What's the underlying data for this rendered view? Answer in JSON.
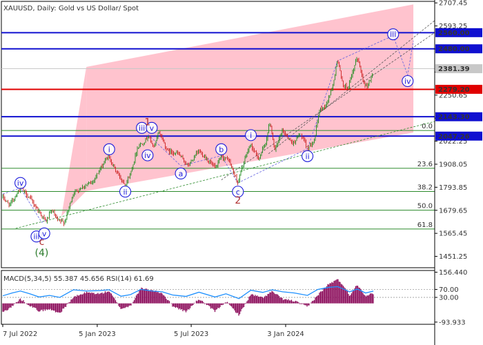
{
  "header": {
    "symbol_line": "XAUUSD, Daily:  Gold vs US Dollar/ Spot"
  },
  "colors": {
    "channel_fill": "#ffc0cb",
    "level_blue": "#1010d0",
    "level_red": "#e00000",
    "fib_green": "#2a8a2a",
    "candle_up": "#1a8a1a",
    "candle_down": "#cc2020",
    "wave_label": "#1a1adb",
    "wave_red": "#b03030",
    "wave_green": "#2a7a2a",
    "macd_hist": "#8b0a5a",
    "rsi_line": "#1e90ff"
  },
  "chart_data": [
    {
      "type": "candlestick",
      "title": "XAUUSD, Daily:  Gold vs US Dollar/ Spot",
      "x_ticks": [
        "7 Jul 2022",
        "5 Jan 2023",
        "5 Jul 2023",
        "3 Jan 2024"
      ],
      "y_ticks": [
        2707.45,
        2593.25,
        2479.05,
        2364.85,
        2250.65,
        2136.45,
        2022.25,
        1908.05,
        1793.85,
        1679.65,
        1565.45,
        1451.25
      ],
      "y_tick_labels": [
        "2707.45",
        "2593.25",
        "",
        "",
        "2250.65",
        "",
        "2022.25",
        "1908.05",
        "1793.85",
        "1679.65",
        "1565.45",
        "1451.25"
      ],
      "ylim": [
        1395,
        2715
      ],
      "current_price": {
        "value": 2381.39,
        "label": "2381.39"
      },
      "price_path": [
        [
          "2022-07-07",
          1745
        ],
        [
          "2022-07-20",
          1705
        ],
        [
          "2022-08-10",
          1790
        ],
        [
          "2022-08-25",
          1750
        ],
        [
          "2022-09-05",
          1710
        ],
        [
          "2022-09-28",
          1625
        ],
        [
          "2022-10-10",
          1680
        ],
        [
          "2022-10-20",
          1628
        ],
        [
          "2022-11-03",
          1620
        ],
        [
          "2022-11-20",
          1765
        ],
        [
          "2022-12-10",
          1800
        ],
        [
          "2022-12-25",
          1815
        ],
        [
          "2023-01-10",
          1880
        ],
        [
          "2023-01-26",
          1950
        ],
        [
          "2023-02-10",
          1875
        ],
        [
          "2023-02-28",
          1808
        ],
        [
          "2023-03-10",
          1860
        ],
        [
          "2023-03-24",
          1995
        ],
        [
          "2023-04-05",
          2018
        ],
        [
          "2023-04-13",
          2048
        ],
        [
          "2023-04-25",
          1990
        ],
        [
          "2023-05-04",
          2072
        ],
        [
          "2023-05-20",
          1975
        ],
        [
          "2023-06-10",
          1960
        ],
        [
          "2023-06-29",
          1900
        ],
        [
          "2023-07-20",
          1975
        ],
        [
          "2023-08-10",
          1918
        ],
        [
          "2023-08-21",
          1885
        ],
        [
          "2023-09-01",
          1945
        ],
        [
          "2023-09-15",
          1930
        ],
        [
          "2023-10-03",
          1815
        ],
        [
          "2023-10-15",
          1925
        ],
        [
          "2023-10-27",
          2005
        ],
        [
          "2023-11-12",
          1935
        ],
        [
          "2023-11-25",
          2010
        ],
        [
          "2023-12-04",
          2120
        ],
        [
          "2023-12-13",
          1975
        ],
        [
          "2023-12-28",
          2075
        ],
        [
          "2024-01-17",
          2010
        ],
        [
          "2024-01-31",
          2060
        ],
        [
          "2024-02-14",
          1985
        ],
        [
          "2024-02-28",
          2035
        ],
        [
          "2024-03-08",
          2175
        ],
        [
          "2024-03-21",
          2200
        ],
        [
          "2024-04-03",
          2300
        ],
        [
          "2024-04-12",
          2430
        ],
        [
          "2024-04-22",
          2300
        ],
        [
          "2024-05-03",
          2290
        ],
        [
          "2024-05-20",
          2440
        ],
        [
          "2024-05-31",
          2325
        ],
        [
          "2024-06-07",
          2290
        ],
        [
          "2024-06-20",
          2360
        ]
      ],
      "levels": [
        {
          "value": 2560.0,
          "label": "2560.00",
          "color": "blue"
        },
        {
          "value": 2480.0,
          "label": "2480.00",
          "color": "blue"
        },
        {
          "value": 2279.2,
          "label": "2279.20",
          "color": "red"
        },
        {
          "value": 2143.3,
          "label": "2143.30",
          "color": "blue"
        },
        {
          "value": 2047.26,
          "label": "2047.26",
          "color": "blue"
        }
      ],
      "fib_levels": [
        {
          "value": 2075,
          "label": "0.0"
        },
        {
          "value": 1888,
          "label": "23.6"
        },
        {
          "value": 1773,
          "label": "38.2"
        },
        {
          "value": 1680,
          "label": "50.0"
        },
        {
          "value": 1587,
          "label": "61.8"
        }
      ],
      "channel": {
        "upper": [
          [
            "2022-12-15",
            2390
          ],
          [
            "2024-09-05",
            2700
          ]
        ],
        "lower": [
          [
            "2022-12-15",
            1775
          ],
          [
            "2024-09-05",
            2065
          ]
        ]
      },
      "wave_labels": [
        {
          "text": "iv",
          "x": "2022-08-10",
          "y": 1815,
          "style": "circle"
        },
        {
          "text": "iii",
          "x": "2022-09-10",
          "y": 1550,
          "style": "circle"
        },
        {
          "text": "v",
          "x": "2022-09-25",
          "y": 1565,
          "style": "circle"
        },
        {
          "text": "c",
          "x": "2022-09-20",
          "y": 1525,
          "style": "red"
        },
        {
          "text": "(4)",
          "x": "2022-09-20",
          "y": 1470,
          "style": "green"
        },
        {
          "text": "i",
          "x": "2023-01-28",
          "y": 1982,
          "style": "circle"
        },
        {
          "text": "ii",
          "x": "2023-02-28",
          "y": 1772,
          "style": "circle"
        },
        {
          "text": "iii",
          "x": "2023-04-01",
          "y": 2088,
          "style": "circle"
        },
        {
          "text": "v",
          "x": "2023-04-20",
          "y": 2088,
          "style": "circle"
        },
        {
          "text": "1",
          "x": "2023-04-12",
          "y": 2118,
          "style": "red"
        },
        {
          "text": "iv",
          "x": "2023-04-12",
          "y": 1952,
          "style": "circle"
        },
        {
          "text": "a",
          "x": "2023-06-15",
          "y": 1862,
          "style": "circle"
        },
        {
          "text": "b",
          "x": "2023-09-01",
          "y": 1982,
          "style": "circle"
        },
        {
          "text": "c",
          "x": "2023-10-03",
          "y": 1772,
          "style": "circle"
        },
        {
          "text": "2",
          "x": "2023-10-03",
          "y": 1730,
          "style": "red"
        },
        {
          "text": "i",
          "x": "2023-10-28",
          "y": 2052,
          "style": "circle"
        },
        {
          "text": "ii",
          "x": "2024-02-14",
          "y": 1948,
          "style": "circle"
        },
        {
          "text": "iii",
          "x": "2024-07-28",
          "y": 2552,
          "style": "circle"
        },
        {
          "text": "iv",
          "x": "2024-08-25",
          "y": 2320,
          "style": "circle"
        }
      ]
    },
    {
      "type": "indicator",
      "label": "MACD(5,34,5) 55.387 45.656 RSI(14) 61.69",
      "y_ticks": [
        156.44,
        70.0,
        30.0,
        -93.933
      ],
      "y_tick_labels": [
        "156.440",
        "70.00",
        "30.00",
        "-93.933"
      ],
      "ylim": [
        -105,
        165
      ],
      "macd_hist_path": [
        [
          "2022-07-07",
          -45
        ],
        [
          "2022-07-25",
          -15
        ],
        [
          "2022-08-10",
          22
        ],
        [
          "2022-08-28",
          -10
        ],
        [
          "2022-09-15",
          -38
        ],
        [
          "2022-10-05",
          -30
        ],
        [
          "2022-10-25",
          -48
        ],
        [
          "2022-11-20",
          30
        ],
        [
          "2022-12-15",
          55
        ],
        [
          "2023-01-10",
          48
        ],
        [
          "2023-01-28",
          62
        ],
        [
          "2023-02-20",
          -28
        ],
        [
          "2023-03-10",
          -12
        ],
        [
          "2023-03-30",
          75
        ],
        [
          "2023-04-20",
          65
        ],
        [
          "2023-05-10",
          52
        ],
        [
          "2023-05-30",
          -12
        ],
        [
          "2023-06-25",
          -42
        ],
        [
          "2023-07-20",
          22
        ],
        [
          "2023-08-20",
          -40
        ],
        [
          "2023-09-10",
          10
        ],
        [
          "2023-10-05",
          -58
        ],
        [
          "2023-10-28",
          45
        ],
        [
          "2023-11-20",
          28
        ],
        [
          "2023-12-08",
          60
        ],
        [
          "2023-12-28",
          22
        ],
        [
          "2024-01-20",
          12
        ],
        [
          "2024-02-14",
          -18
        ],
        [
          "2024-03-05",
          42
        ],
        [
          "2024-03-25",
          95
        ],
        [
          "2024-04-12",
          120
        ],
        [
          "2024-04-25",
          85
        ],
        [
          "2024-05-05",
          38
        ],
        [
          "2024-05-20",
          95
        ],
        [
          "2024-06-05",
          38
        ],
        [
          "2024-06-20",
          50
        ]
      ],
      "rsi_path": [
        [
          "2022-07-07",
          38
        ],
        [
          "2022-07-25",
          52
        ],
        [
          "2022-08-10",
          62
        ],
        [
          "2022-08-28",
          48
        ],
        [
          "2022-09-15",
          32
        ],
        [
          "2022-10-05",
          40
        ],
        [
          "2022-10-25",
          30
        ],
        [
          "2022-11-20",
          68
        ],
        [
          "2022-12-15",
          62
        ],
        [
          "2023-01-10",
          64
        ],
        [
          "2023-01-28",
          68
        ],
        [
          "2023-02-20",
          36
        ],
        [
          "2023-03-10",
          44
        ],
        [
          "2023-03-30",
          70
        ],
        [
          "2023-04-20",
          62
        ],
        [
          "2023-05-10",
          58
        ],
        [
          "2023-05-30",
          42
        ],
        [
          "2023-06-25",
          35
        ],
        [
          "2023-07-20",
          56
        ],
        [
          "2023-08-20",
          32
        ],
        [
          "2023-09-10",
          48
        ],
        [
          "2023-10-05",
          24
        ],
        [
          "2023-10-28",
          66
        ],
        [
          "2023-11-20",
          55
        ],
        [
          "2023-12-08",
          68
        ],
        [
          "2023-12-28",
          58
        ],
        [
          "2024-01-20",
          52
        ],
        [
          "2024-02-14",
          40
        ],
        [
          "2024-03-05",
          70
        ],
        [
          "2024-03-25",
          80
        ],
        [
          "2024-04-12",
          84
        ],
        [
          "2024-04-25",
          70
        ],
        [
          "2024-05-05",
          58
        ],
        [
          "2024-05-20",
          72
        ],
        [
          "2024-06-05",
          52
        ],
        [
          "2024-06-20",
          61.69
        ]
      ]
    }
  ]
}
